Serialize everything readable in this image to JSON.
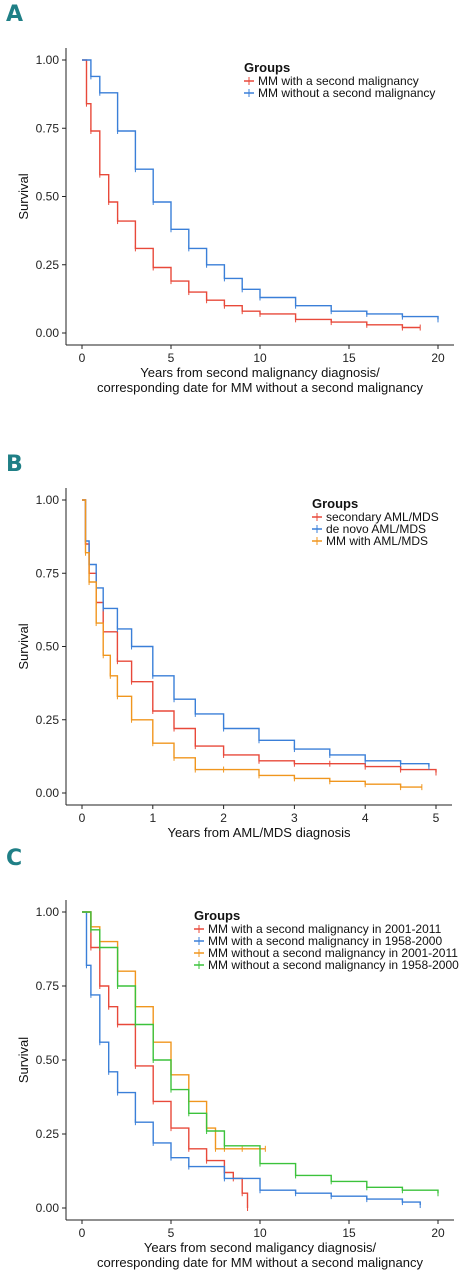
{
  "panels": [
    {
      "letter": "A"
    },
    {
      "letter": "B"
    },
    {
      "letter": "C"
    }
  ],
  "chart_data": [
    {
      "type": "line",
      "panel": "A",
      "ylabel": "Survival",
      "xlabel_lines": [
        "Years from second malignancy diagnosis/",
        "corresponding date for MM without a second malignancy"
      ],
      "xlim": [
        0,
        20
      ],
      "ylim": [
        0,
        1
      ],
      "xticks": [
        0,
        5,
        10,
        15,
        20
      ],
      "yticks": [
        0.0,
        0.25,
        0.5,
        0.75,
        1.0
      ],
      "ytick_labels": [
        "0.00",
        "0.25",
        "0.50",
        "0.75",
        "1.00"
      ],
      "legend": {
        "title": "Groups",
        "placement": "top-right"
      },
      "grid": false,
      "series": [
        {
          "name": "MM with a second malignancy",
          "color": "#e8493a",
          "x": [
            0,
            0.25,
            0.5,
            1,
            1.5,
            2,
            3,
            4,
            5,
            6,
            7,
            8,
            9,
            10,
            12,
            14,
            16,
            18,
            19
          ],
          "y": [
            1.0,
            0.84,
            0.74,
            0.58,
            0.48,
            0.41,
            0.31,
            0.24,
            0.19,
            0.15,
            0.12,
            0.1,
            0.08,
            0.07,
            0.05,
            0.04,
            0.03,
            0.02,
            0.02
          ]
        },
        {
          "name": "MM without a second malignancy",
          "color": "#3a7fd8",
          "x": [
            0,
            0.5,
            1,
            2,
            3,
            4,
            5,
            6,
            7,
            8,
            9,
            10,
            12,
            14,
            16,
            18,
            20
          ],
          "y": [
            1.0,
            0.94,
            0.88,
            0.74,
            0.6,
            0.48,
            0.38,
            0.31,
            0.25,
            0.2,
            0.16,
            0.13,
            0.1,
            0.08,
            0.07,
            0.06,
            0.05
          ]
        }
      ]
    },
    {
      "type": "line",
      "panel": "B",
      "ylabel": "Survival",
      "xlabel_lines": [
        "Years from AML/MDS diagnosis"
      ],
      "xlim": [
        0,
        5
      ],
      "ylim": [
        0,
        1
      ],
      "xticks": [
        0,
        1,
        2,
        3,
        4,
        5
      ],
      "yticks": [
        0.0,
        0.25,
        0.5,
        0.75,
        1.0
      ],
      "ytick_labels": [
        "0.00",
        "0.25",
        "0.50",
        "0.75",
        "1.00"
      ],
      "legend": {
        "title": "Groups",
        "placement": "top-right"
      },
      "grid": false,
      "series": [
        {
          "name": "secondary AML/MDS",
          "color": "#e8493a",
          "x": [
            0,
            0.05,
            0.1,
            0.2,
            0.3,
            0.5,
            0.7,
            1.0,
            1.3,
            1.6,
            2.0,
            2.5,
            3.0,
            3.5,
            4.0,
            4.5,
            5.0
          ],
          "y": [
            1.0,
            0.85,
            0.75,
            0.65,
            0.55,
            0.45,
            0.38,
            0.28,
            0.22,
            0.16,
            0.13,
            0.11,
            0.1,
            0.1,
            0.09,
            0.08,
            0.07
          ]
        },
        {
          "name": "de novo AML/MDS",
          "color": "#3a7fd8",
          "x": [
            0,
            0.05,
            0.1,
            0.2,
            0.3,
            0.5,
            0.7,
            1.0,
            1.3,
            1.6,
            2.0,
            2.5,
            3.0,
            3.5,
            4.0,
            4.5,
            4.9
          ],
          "y": [
            1.0,
            0.86,
            0.78,
            0.7,
            0.63,
            0.56,
            0.5,
            0.4,
            0.32,
            0.27,
            0.22,
            0.18,
            0.15,
            0.13,
            0.11,
            0.1,
            0.09
          ]
        },
        {
          "name": "MM with AML/MDS",
          "color": "#f0961e",
          "x": [
            0,
            0.05,
            0.1,
            0.2,
            0.3,
            0.4,
            0.5,
            0.7,
            1.0,
            1.3,
            1.6,
            2.0,
            2.5,
            3.0,
            3.5,
            4.0,
            4.5,
            4.8
          ],
          "y": [
            1.0,
            0.82,
            0.72,
            0.58,
            0.47,
            0.4,
            0.33,
            0.25,
            0.17,
            0.12,
            0.08,
            0.08,
            0.06,
            0.05,
            0.04,
            0.03,
            0.02,
            0.02
          ]
        }
      ]
    },
    {
      "type": "line",
      "panel": "C",
      "ylabel": "Survival",
      "xlabel_lines": [
        "Years from second maligancy diagnosis/",
        "corresponding date for MM without a second malignancy"
      ],
      "xlim": [
        0,
        20
      ],
      "ylim": [
        0,
        1
      ],
      "xticks": [
        0,
        5,
        10,
        15,
        20
      ],
      "yticks": [
        0.0,
        0.25,
        0.5,
        0.75,
        1.0
      ],
      "ytick_labels": [
        "0.00",
        "0.25",
        "0.50",
        "0.75",
        "1.00"
      ],
      "legend": {
        "title": "Groups",
        "placement": "top-right"
      },
      "grid": false,
      "series": [
        {
          "name": "MM with a second malignancy in 2001-2011",
          "color": "#e8493a",
          "x": [
            0,
            0.5,
            1,
            1.5,
            2,
            3,
            4,
            5,
            6,
            7,
            8,
            8.5,
            9,
            9.3
          ],
          "y": [
            1.0,
            0.88,
            0.75,
            0.68,
            0.62,
            0.48,
            0.36,
            0.27,
            0.2,
            0.16,
            0.12,
            0.1,
            0.05,
            0.0
          ]
        },
        {
          "name": "MM with a second malignancy in 1958-2000",
          "color": "#3a7fd8",
          "x": [
            0,
            0.25,
            0.5,
            1,
            1.5,
            2,
            3,
            4,
            5,
            6,
            8,
            10,
            12,
            14,
            16,
            18,
            19
          ],
          "y": [
            1.0,
            0.82,
            0.72,
            0.56,
            0.46,
            0.39,
            0.29,
            0.22,
            0.17,
            0.14,
            0.1,
            0.06,
            0.05,
            0.04,
            0.03,
            0.02,
            0.01
          ]
        },
        {
          "name": "MM without a second malignancy in 2001-2011",
          "color": "#f0961e",
          "x": [
            0,
            0.5,
            1,
            2,
            3,
            4,
            5,
            6,
            7,
            7.5,
            8,
            9,
            10.3
          ],
          "y": [
            1.0,
            0.95,
            0.9,
            0.8,
            0.68,
            0.56,
            0.45,
            0.36,
            0.27,
            0.2,
            0.2,
            0.2,
            0.2
          ]
        },
        {
          "name": "MM without a second malignancy in 1958-2000",
          "color": "#3bc23b",
          "x": [
            0,
            0.5,
            1,
            2,
            3,
            4,
            5,
            6,
            7,
            8,
            10,
            12,
            14,
            16,
            18,
            20
          ],
          "y": [
            1.0,
            0.94,
            0.88,
            0.75,
            0.62,
            0.5,
            0.4,
            0.32,
            0.26,
            0.21,
            0.15,
            0.11,
            0.09,
            0.07,
            0.06,
            0.05
          ]
        }
      ]
    }
  ]
}
